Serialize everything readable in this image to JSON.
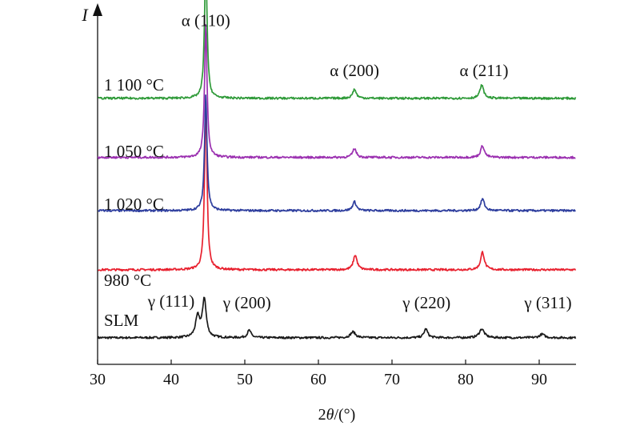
{
  "chart_data": {
    "type": "line",
    "title": "",
    "xlabel": "2θ/(°)",
    "ylabel": "I",
    "xlim": [
      30,
      95
    ],
    "ylim": [
      0,
      12
    ],
    "x_ticks": [
      30,
      40,
      50,
      60,
      70,
      80,
      90
    ],
    "grid": false,
    "legend": "none",
    "series": [
      {
        "name": "SLM",
        "color": "#1a1a1a",
        "baseline": 0.9,
        "peaks": [
          {
            "x": 43.6,
            "height": 0.7,
            "width": 0.35
          },
          {
            "x": 44.5,
            "height": 1.3,
            "width": 0.3
          },
          {
            "x": 50.6,
            "height": 0.25,
            "width": 0.3
          },
          {
            "x": 64.7,
            "height": 0.2,
            "width": 0.4
          },
          {
            "x": 74.6,
            "height": 0.3,
            "width": 0.3
          },
          {
            "x": 82.2,
            "height": 0.3,
            "width": 0.4
          },
          {
            "x": 90.4,
            "height": 0.12,
            "width": 0.4
          }
        ]
      },
      {
        "name": "980 °C",
        "color": "#e8202e",
        "baseline": 3.2,
        "peaks": [
          {
            "x": 44.7,
            "height": 5.6,
            "width": 0.2
          },
          {
            "x": 65.0,
            "height": 0.5,
            "width": 0.3
          },
          {
            "x": 82.3,
            "height": 0.6,
            "width": 0.3
          }
        ]
      },
      {
        "name": "1 020 °C",
        "color": "#2e3e9e",
        "baseline": 5.2,
        "peaks": [
          {
            "x": 44.7,
            "height": 3.9,
            "width": 0.2
          },
          {
            "x": 64.9,
            "height": 0.3,
            "width": 0.3
          },
          {
            "x": 82.3,
            "height": 0.4,
            "width": 0.3
          }
        ]
      },
      {
        "name": "1 050 °C",
        "color": "#9b30b0",
        "baseline": 7.0,
        "peaks": [
          {
            "x": 44.7,
            "height": 4.5,
            "width": 0.2
          },
          {
            "x": 64.9,
            "height": 0.3,
            "width": 0.3
          },
          {
            "x": 82.3,
            "height": 0.4,
            "width": 0.3
          }
        ]
      },
      {
        "name": "1 100 °C",
        "color": "#2e9a38",
        "baseline": 9.0,
        "peaks": [
          {
            "x": 44.7,
            "height": 4.8,
            "width": 0.2
          },
          {
            "x": 64.9,
            "height": 0.3,
            "width": 0.3
          },
          {
            "x": 82.2,
            "height": 0.45,
            "width": 0.3
          }
        ]
      }
    ],
    "annotations": [
      {
        "text": "α (110)",
        "x": 44.7,
        "y": 11.45
      },
      {
        "text": "α (200)",
        "x": 64.9,
        "y": 9.75
      },
      {
        "text": "α (211)",
        "x": 82.5,
        "y": 9.75
      },
      {
        "text": "γ (111)",
        "x": 40.0,
        "y": 1.95
      },
      {
        "text": "γ (200)",
        "x": 50.3,
        "y": 1.9
      },
      {
        "text": "γ (220)",
        "x": 74.7,
        "y": 1.9
      },
      {
        "text": "γ (311)",
        "x": 91.2,
        "y": 1.9
      }
    ]
  }
}
